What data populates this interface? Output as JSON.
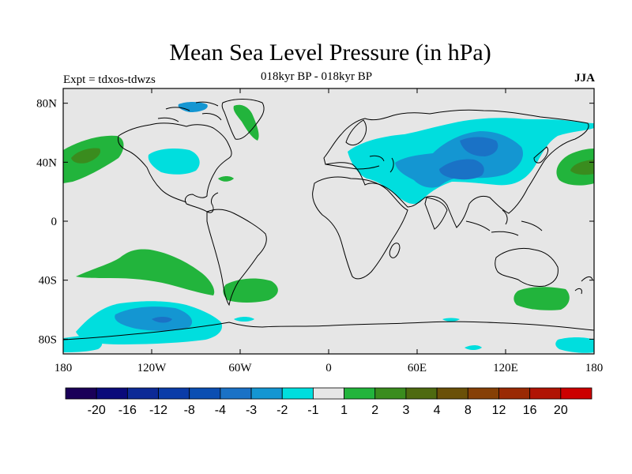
{
  "title": "Mean Sea Level Pressure (in hPa)",
  "experiment_label": "Expt = tdxos-tdwzs",
  "period_label": "018kyr BP - 018kyr BP",
  "season": "JJA",
  "map": {
    "projection": "cylindrical equidistant",
    "lon_range": [
      -180,
      180
    ],
    "lat_range": [
      -90,
      90
    ],
    "background_color": "#e6e6e6",
    "coastline_color": "#000000",
    "x_ticks": [
      {
        "lon": -180,
        "label": "180"
      },
      {
        "lon": -120,
        "label": "120W"
      },
      {
        "lon": -60,
        "label": "60W"
      },
      {
        "lon": 0,
        "label": "0"
      },
      {
        "lon": 60,
        "label": "60E"
      },
      {
        "lon": 120,
        "label": "120E"
      },
      {
        "lon": 180,
        "label": "180"
      }
    ],
    "y_ticks": [
      {
        "lat": 80,
        "label": "80N"
      },
      {
        "lat": 40,
        "label": "40N"
      },
      {
        "lat": 0,
        "label": "0"
      },
      {
        "lat": -40,
        "label": "40S"
      },
      {
        "lat": -80,
        "label": "80S"
      }
    ]
  },
  "colorbar": {
    "colors": [
      "#1a0058",
      "#0a0a7a",
      "#0c2a96",
      "#0a3ca8",
      "#0b4eb2",
      "#1a72c6",
      "#1496d2",
      "#00dede",
      "#e6e6e6",
      "#22b43c",
      "#3a8c1e",
      "#4e6a10",
      "#6a5008",
      "#864006",
      "#9a2a04",
      "#b01404",
      "#cc0000"
    ],
    "labels": [
      "-20",
      "-16",
      "-12",
      "-8",
      "-4",
      "-3",
      "-2",
      "-1",
      "1",
      "2",
      "3",
      "4",
      "8",
      "12",
      "16",
      "20"
    ]
  },
  "field_regions": [
    {
      "level": "1 to 2",
      "color": "#22b43c",
      "lon": -170,
      "lat": 42
    },
    {
      "level": "2 to 3",
      "color": "#3a8c1e",
      "lon": -170,
      "lat": 43
    },
    {
      "level": "1 to 2",
      "color": "#22b43c",
      "lon": 165,
      "lat": 35
    },
    {
      "level": "2 to 3",
      "color": "#3a8c1e",
      "lon": 168,
      "lat": 36
    },
    {
      "level": "1 to 2",
      "color": "#22b43c",
      "lon": -120,
      "lat": -35
    },
    {
      "level": "1 to 2",
      "color": "#22b43c",
      "lon": -45,
      "lat": -48
    },
    {
      "level": "1 to 2",
      "color": "#22b43c",
      "lon": 145,
      "lat": -53
    },
    {
      "level": "-2 to -1",
      "color": "#00dede",
      "lon": 75,
      "lat": 45
    },
    {
      "level": "-3 to -2",
      "color": "#1496d2",
      "lon": 90,
      "lat": 45
    },
    {
      "level": "-4 to -3",
      "color": "#1a72c6",
      "lon": 88,
      "lat": 35
    },
    {
      "level": "-2 to -1",
      "color": "#00dede",
      "lon": -110,
      "lat": 42
    },
    {
      "level": "-2 to -1",
      "color": "#00dede",
      "lon": -130,
      "lat": -65
    },
    {
      "level": "-3 to -2",
      "color": "#1496d2",
      "lon": -130,
      "lat": -68
    },
    {
      "level": "-4 to -3",
      "color": "#1a72c6",
      "lon": -122,
      "lat": -67
    }
  ]
}
